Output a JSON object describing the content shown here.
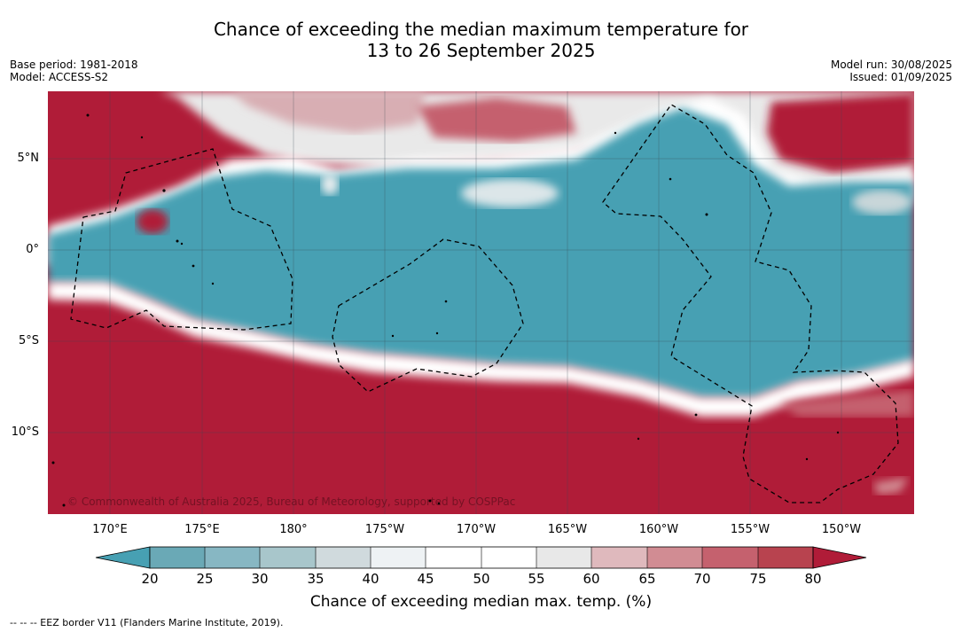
{
  "title": {
    "line1": "Chance of exceeding the median maximum temperature for",
    "line2": "13 to 26 September 2025"
  },
  "meta_left": {
    "base_period": "Base period: 1981-2018",
    "model": "Model: ACCESS-S2"
  },
  "meta_right": {
    "model_run": "Model run: 30/08/2025",
    "issued": "Issued: 01/09/2025"
  },
  "map": {
    "latitude_labels": [
      "5°N",
      "0°",
      "5°S",
      "10°S"
    ],
    "longitude_labels": [
      "170°E",
      "175°E",
      "180°",
      "175°W",
      "170°W",
      "165°W",
      "160°W",
      "155°W",
      "150°W"
    ],
    "copyright": "© Commonwealth of Australia 2025, Bureau of Meteorology, supported by COSPPac",
    "region_colors": {
      "below_25": "#47a0b3",
      "neutral": "#ffffff",
      "above_75": "#b01c38"
    }
  },
  "colorbar": {
    "ticks": [
      "20",
      "25",
      "30",
      "35",
      "40",
      "45",
      "50",
      "55",
      "60",
      "65",
      "70",
      "75",
      "80"
    ],
    "colors": [
      "#47a0b3",
      "#6aa9b6",
      "#87b7c3",
      "#a8c6cb",
      "#d0dadd",
      "#eef2f4",
      "#ffffff",
      "#ffffff",
      "#e8e8e8",
      "#dfb9bd",
      "#d18c93",
      "#c5616e",
      "#b8434f",
      "#b01c38"
    ],
    "title": "Chance of exceeding median max. temp. (%)"
  },
  "footer": "--  --  -- EEZ border V11 (Flanders Marine Institute, 2019)."
}
